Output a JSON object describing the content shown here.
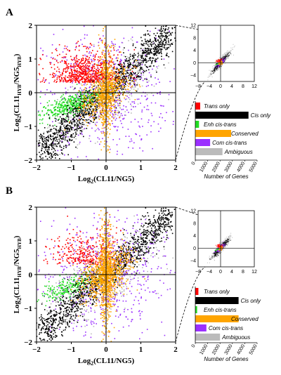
{
  "panels": [
    {
      "letter": "A",
      "main_plot": {
        "xlabel_pre": "Log",
        "xlabel_sub": "2",
        "xlabel_post": "(CL11/NG5)",
        "ylabel_pre": "Log",
        "ylabel_sub1": "2",
        "ylabel_mid": "(CL11",
        "ylabel_sub2": "HYB",
        "ylabel_mid2": "/NG5",
        "ylabel_sub3": "HYB",
        "ylabel_post": ")",
        "xticks": [
          "−2",
          "−1",
          "0",
          "1",
          "2"
        ],
        "yticks": [
          "2",
          "1",
          "0",
          "−1",
          "−2"
        ]
      },
      "inset_plot": {
        "xticks": [
          "−8",
          "−4",
          "0",
          "4",
          "8",
          "12"
        ],
        "yticks": [
          "12",
          "8",
          "4",
          "0",
          "−4"
        ]
      },
      "legend": {
        "items": [
          "Trans only",
          "Cis only",
          "Enh cis-trans",
          "Conserved",
          "Com cis-trans",
          "Ambiguous"
        ],
        "values": [
          400,
          4300,
          300,
          2900,
          1200,
          2200
        ],
        "xticks": [
          "0",
          "1000",
          "2000",
          "3000",
          "4000",
          "5000"
        ],
        "xlabel": "Number of Genes"
      }
    },
    {
      "letter": "B",
      "main_plot": {
        "xlabel_pre": "Log",
        "xlabel_sub": "2",
        "xlabel_post": "(CL11/NG5)",
        "ylabel_pre": "Log",
        "ylabel_sub1": "2",
        "ylabel_mid": "(CL11",
        "ylabel_sub2": "HYB",
        "ylabel_mid2": "/NG5",
        "ylabel_sub3": "HYB",
        "ylabel_post": ")",
        "xticks": [
          "−2",
          "−1",
          "0",
          "1",
          "2"
        ],
        "yticks": [
          "2",
          "1",
          "0",
          "−1",
          "−2"
        ]
      },
      "inset_plot": {
        "xticks": [
          "−8",
          "−4",
          "0",
          "4",
          "8",
          "12"
        ],
        "yticks": [
          "12",
          "8",
          "4",
          "0",
          "−4"
        ]
      },
      "legend": {
        "items": [
          "Trans only",
          "Cis only",
          "Enh cis-trans",
          "Conserved",
          "Com cis-trans",
          "Ambiguous"
        ],
        "values": [
          250,
          3500,
          150,
          3500,
          900,
          2000
        ],
        "xticks": [
          "0",
          "1000",
          "2000",
          "3000",
          "4000",
          "5000"
        ],
        "xlabel": "Number of Genes"
      }
    }
  ],
  "chart_data": [
    {
      "type": "scatter",
      "panel": "A",
      "xlabel": "Log2(CL11/NG5)",
      "ylabel": "Log2(CL11HYB/NG5HYB)",
      "xlim": [
        -2,
        2
      ],
      "ylim": [
        -2,
        2
      ],
      "series": [
        {
          "name": "Trans only",
          "pattern": "x spread, y near 0 to 1 (upper-left band)"
        },
        {
          "name": "Cis only",
          "pattern": "along diagonal y = x"
        },
        {
          "name": "Enh cis-trans",
          "pattern": "left side, y between 0 and x"
        },
        {
          "name": "Conserved",
          "pattern": "cluster near origin"
        },
        {
          "name": "Com cis-trans",
          "pattern": "scattered off-diagonal"
        },
        {
          "name": "Ambiguous",
          "pattern": "scattered"
        }
      ],
      "grid": false
    },
    {
      "type": "bar",
      "panel": "A",
      "orientation": "horizontal",
      "categories": [
        "Trans only",
        "Cis only",
        "Enh cis-trans",
        "Conserved",
        "Com cis-trans",
        "Ambiguous"
      ],
      "values": [
        400,
        4300,
        300,
        2900,
        1200,
        2200
      ],
      "xlabel": "Number of Genes",
      "xlim": [
        0,
        5000
      ]
    },
    {
      "type": "scatter",
      "panel": "B",
      "xlabel": "Log2(CL11/NG5)",
      "ylabel": "Log2(CL11HYB/NG5HYB)",
      "xlim": [
        -2,
        2
      ],
      "ylim": [
        -2,
        2
      ],
      "grid": false
    },
    {
      "type": "bar",
      "panel": "B",
      "orientation": "horizontal",
      "categories": [
        "Trans only",
        "Cis only",
        "Enh cis-trans",
        "Conserved",
        "Com cis-trans",
        "Ambiguous"
      ],
      "values": [
        250,
        3500,
        150,
        3500,
        900,
        2000
      ],
      "xlabel": "Number of Genes",
      "xlim": [
        0,
        5000
      ]
    }
  ],
  "colors": {
    "trans_only": "#ff0000",
    "cis_only": "#000000",
    "enh_cis_trans": "#22dd22",
    "conserved": "#ffa500",
    "com_cis_trans": "#9b30ff",
    "ambiguous": "#bbbbbb"
  }
}
